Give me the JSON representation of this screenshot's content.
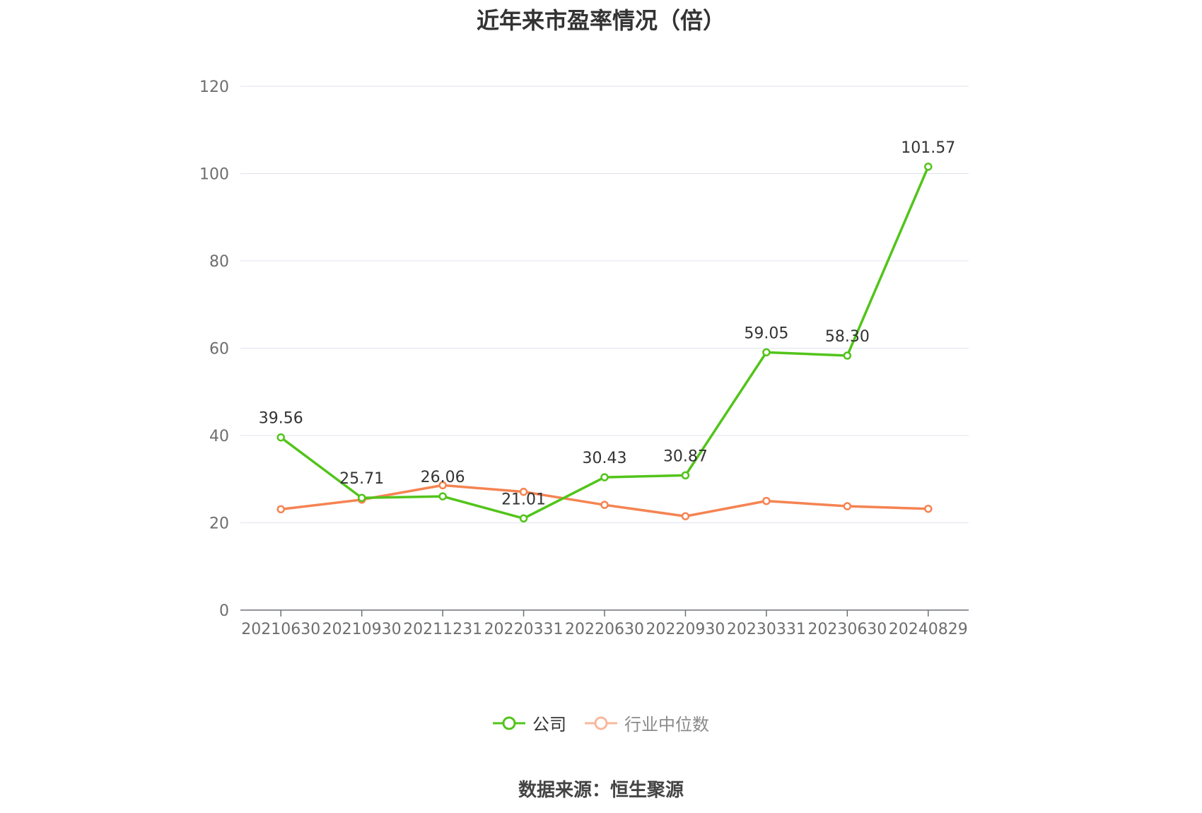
{
  "chart_data": {
    "type": "line",
    "title": "近年来市盈率情况（倍）",
    "categories": [
      "20210630",
      "20210930",
      "20211231",
      "20220331",
      "20220630",
      "20220930",
      "20230331",
      "20230630",
      "20240829"
    ],
    "series": [
      {
        "name": "公司",
        "color": "#52c41a",
        "values": [
          39.56,
          25.71,
          26.06,
          21.01,
          30.43,
          30.87,
          59.05,
          58.3,
          101.57
        ],
        "labels": [
          "39.56",
          "25.71",
          "26.06",
          "21.01",
          "30.43",
          "30.87",
          "59.05",
          "58.30",
          "101.57"
        ]
      },
      {
        "name": "行业中位数",
        "color": "#f58352",
        "values": [
          23.1,
          25.3,
          28.6,
          27.1,
          24.1,
          21.5,
          25.0,
          23.8,
          23.2
        ]
      }
    ],
    "ylim": [
      0,
      120
    ],
    "yticks": [
      0,
      20,
      40,
      60,
      80,
      100,
      120
    ],
    "grid": true,
    "legend": "bottom-center",
    "source": "数据来源：恒生聚源"
  }
}
